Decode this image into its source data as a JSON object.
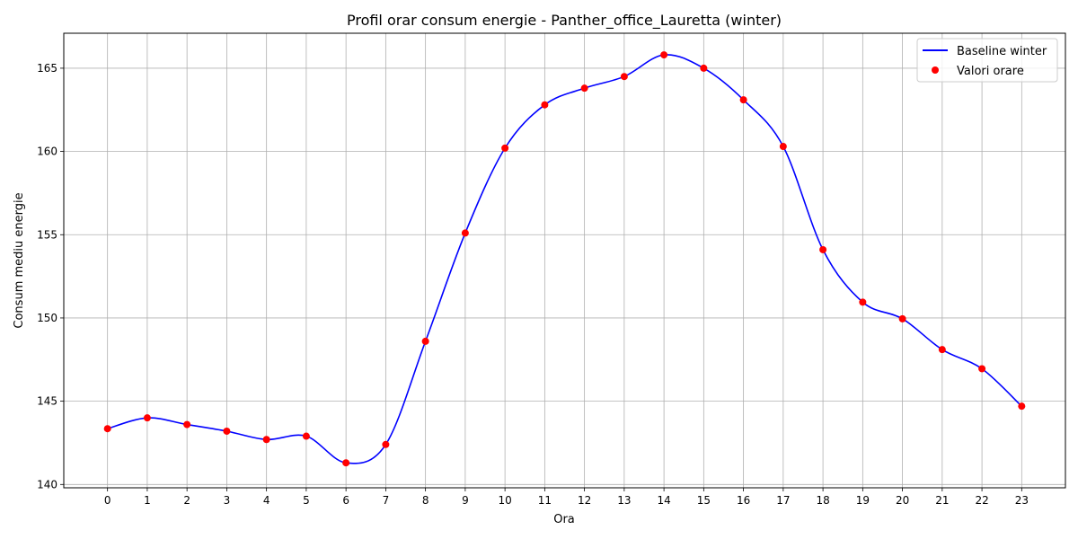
{
  "chart_data": {
    "type": "line",
    "title": "Profil orar consum energie - Panther_office_Lauretta (winter)",
    "xlabel": "Ora",
    "ylabel": "Consum mediu energie",
    "x": [
      0,
      1,
      2,
      3,
      4,
      5,
      6,
      7,
      8,
      9,
      10,
      11,
      12,
      13,
      14,
      15,
      16,
      17,
      18,
      19,
      20,
      21,
      22,
      23
    ],
    "xticks": [
      "0",
      "1",
      "2",
      "3",
      "4",
      "5",
      "6",
      "7",
      "8",
      "9",
      "10",
      "11",
      "12",
      "13",
      "14",
      "15",
      "16",
      "17",
      "18",
      "19",
      "20",
      "21",
      "22",
      "23"
    ],
    "yticks": [
      "140",
      "145",
      "150",
      "155",
      "160",
      "165"
    ],
    "xlim": [
      -1.1,
      24.1
    ],
    "ylim": [
      139.8,
      167.1
    ],
    "grid": true,
    "legend_position": "top-right",
    "series": [
      {
        "name": "Baseline winter",
        "kind": "smooth-line",
        "color": "#0000ff",
        "values": [
          143.35,
          144.0,
          143.6,
          143.2,
          142.7,
          142.9,
          141.3,
          142.4,
          148.6,
          155.1,
          160.2,
          162.8,
          163.8,
          164.5,
          165.8,
          165.0,
          163.1,
          160.3,
          154.1,
          150.95,
          149.95,
          148.1,
          146.95,
          144.7
        ]
      },
      {
        "name": "Valori orare",
        "kind": "scatter",
        "color": "#ff0000",
        "values": [
          143.35,
          144.0,
          143.6,
          143.2,
          142.7,
          142.9,
          141.3,
          142.4,
          148.6,
          155.1,
          160.2,
          162.8,
          163.8,
          164.5,
          165.8,
          165.0,
          163.1,
          160.3,
          154.1,
          150.95,
          149.95,
          148.1,
          146.95,
          144.7
        ]
      }
    ]
  }
}
